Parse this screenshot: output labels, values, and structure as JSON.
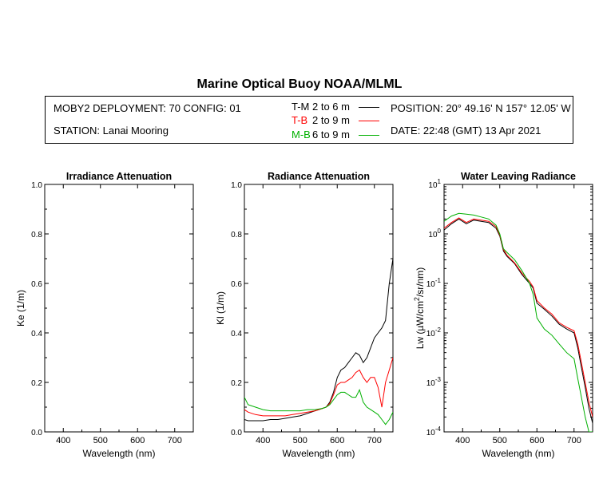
{
  "figure": {
    "title": "Marine Optical Buoy NOAA/MLML",
    "deployment": "MOBY2 DEPLOYMENT: 70 CONFIG: 01",
    "station": "STATION: Lanai Mooring",
    "position": "POSITION: 20° 49.16' N   157° 12.05' W",
    "date": "DATE: 22:48 (GMT) 13 Apr 2021"
  },
  "legend": [
    {
      "code": "T-M",
      "range": "2 to 6  m",
      "color": "#000000"
    },
    {
      "code": "T-B",
      "range": "2 to 9  m",
      "color": "#ff0000"
    },
    {
      "code": "M-B",
      "range": "6 to 9  m",
      "color": "#00b000"
    }
  ],
  "chart_data": [
    {
      "type": "line",
      "title": "Irradiance Attenuation",
      "xlabel": "Wavelength (nm)",
      "ylabel": "Ke  (1/m)",
      "xlim": [
        350,
        750
      ],
      "ylim": [
        0,
        1
      ],
      "xticks": [
        400,
        500,
        600,
        700
      ],
      "yticks": [
        0.0,
        0.2,
        0.4,
        0.6,
        0.8,
        1.0
      ],
      "ytick_labels": [
        "0.0",
        "0.2",
        "0.4",
        "0.6",
        "0.8",
        "1.0"
      ],
      "series": []
    },
    {
      "type": "line",
      "title": "Radiance Attenuation",
      "xlabel": "Wavelength (nm)",
      "ylabel": "Kl  (1/m)",
      "xlim": [
        350,
        750
      ],
      "ylim": [
        0,
        1
      ],
      "xticks": [
        400,
        500,
        600,
        700
      ],
      "yticks": [
        0.0,
        0.2,
        0.4,
        0.6,
        0.8,
        1.0
      ],
      "ytick_labels": [
        "0.0",
        "0.2",
        "0.4",
        "0.6",
        "0.8",
        "1.0"
      ],
      "series": [
        {
          "name": "T-M",
          "color": "#000000",
          "x": [
            350,
            360,
            380,
            400,
            420,
            440,
            460,
            480,
            500,
            520,
            540,
            560,
            570,
            580,
            590,
            600,
            610,
            620,
            630,
            640,
            650,
            660,
            670,
            680,
            690,
            700,
            710,
            720,
            730,
            740,
            750
          ],
          "y": [
            0.05,
            0.045,
            0.045,
            0.045,
            0.05,
            0.05,
            0.055,
            0.06,
            0.065,
            0.075,
            0.085,
            0.095,
            0.1,
            0.12,
            0.16,
            0.22,
            0.25,
            0.26,
            0.28,
            0.3,
            0.32,
            0.31,
            0.28,
            0.3,
            0.34,
            0.38,
            0.4,
            0.42,
            0.45,
            0.6,
            0.7
          ]
        },
        {
          "name": "T-B",
          "color": "#ff0000",
          "x": [
            350,
            360,
            380,
            400,
            420,
            440,
            460,
            480,
            500,
            520,
            540,
            560,
            570,
            580,
            590,
            600,
            610,
            620,
            630,
            640,
            650,
            660,
            670,
            680,
            690,
            700,
            710,
            720,
            730,
            740,
            750
          ],
          "y": [
            0.09,
            0.08,
            0.07,
            0.065,
            0.065,
            0.065,
            0.065,
            0.07,
            0.075,
            0.08,
            0.085,
            0.095,
            0.1,
            0.115,
            0.15,
            0.19,
            0.2,
            0.2,
            0.21,
            0.22,
            0.24,
            0.25,
            0.22,
            0.2,
            0.22,
            0.22,
            0.18,
            0.1,
            0.2,
            0.25,
            0.3
          ]
        },
        {
          "name": "M-B",
          "color": "#00b000",
          "x": [
            350,
            360,
            380,
            400,
            420,
            440,
            460,
            480,
            500,
            520,
            540,
            560,
            570,
            580,
            590,
            600,
            610,
            620,
            630,
            640,
            650,
            660,
            670,
            680,
            690,
            700,
            710,
            720,
            730,
            740,
            750
          ],
          "y": [
            0.14,
            0.11,
            0.1,
            0.09,
            0.085,
            0.085,
            0.085,
            0.085,
            0.085,
            0.09,
            0.09,
            0.095,
            0.1,
            0.11,
            0.13,
            0.15,
            0.16,
            0.16,
            0.15,
            0.14,
            0.14,
            0.17,
            0.12,
            0.1,
            0.09,
            0.08,
            0.07,
            0.05,
            0.03,
            0.05,
            0.08
          ]
        }
      ]
    },
    {
      "type": "line",
      "title": "Water Leaving Radiance",
      "xlabel": "Wavelength (nm)",
      "ylabel": "Lw  (µW/cm²/sr/nm)",
      "ylabel_base": "Lw  (",
      "ylabel_mu": "µ",
      "ylabel_mid": "W/cm",
      "ylabel_sup": "2",
      "ylabel_end": "/sr/nm)",
      "xlim": [
        350,
        750
      ],
      "ylim": [
        0.0001,
        10
      ],
      "yscale": "log",
      "xticks": [
        400,
        500,
        600,
        700
      ],
      "ytick_exponents": [
        1,
        0,
        -1,
        -2,
        -3,
        -4
      ],
      "ytick_base": "10",
      "series": [
        {
          "name": "T-M",
          "color": "#000000",
          "x": [
            350,
            370,
            390,
            410,
            430,
            450,
            470,
            490,
            500,
            510,
            520,
            540,
            560,
            580,
            590,
            600,
            620,
            640,
            660,
            680,
            700,
            710,
            720,
            730,
            740,
            750
          ],
          "y": [
            1.2,
            1.6,
            2.0,
            1.6,
            1.9,
            1.8,
            1.7,
            1.3,
            0.9,
            0.45,
            0.35,
            0.25,
            0.15,
            0.1,
            0.08,
            0.04,
            0.03,
            0.022,
            0.015,
            0.012,
            0.01,
            0.005,
            0.002,
            0.0008,
            0.0003,
            0.00015
          ]
        },
        {
          "name": "T-B",
          "color": "#ff0000",
          "x": [
            350,
            370,
            390,
            410,
            430,
            450,
            470,
            490,
            500,
            510,
            520,
            540,
            560,
            580,
            590,
            600,
            620,
            640,
            660,
            680,
            700,
            710,
            720,
            730,
            740,
            750
          ],
          "y": [
            1.3,
            1.7,
            2.1,
            1.7,
            2.0,
            1.9,
            1.8,
            1.4,
            0.95,
            0.48,
            0.37,
            0.26,
            0.16,
            0.11,
            0.085,
            0.045,
            0.032,
            0.024,
            0.016,
            0.013,
            0.011,
            0.006,
            0.0025,
            0.001,
            0.0004,
            0.0002
          ]
        },
        {
          "name": "M-B",
          "color": "#00b000",
          "x": [
            350,
            370,
            390,
            410,
            430,
            450,
            470,
            490,
            500,
            510,
            520,
            540,
            560,
            580,
            590,
            600,
            620,
            640,
            660,
            680,
            700,
            710,
            720,
            730,
            740,
            750
          ],
          "y": [
            1.8,
            2.3,
            2.6,
            2.5,
            2.4,
            2.2,
            2.0,
            1.5,
            1.0,
            0.5,
            0.42,
            0.3,
            0.18,
            0.1,
            0.06,
            0.02,
            0.012,
            0.009,
            0.006,
            0.004,
            0.003,
            0.0012,
            0.0005,
            0.0002,
            0.0001,
            0.0001
          ]
        }
      ]
    }
  ]
}
